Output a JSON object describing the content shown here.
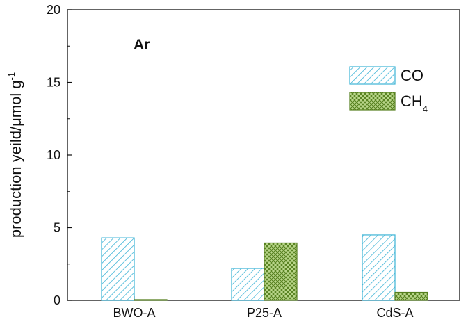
{
  "chart_data": {
    "type": "bar",
    "categories": [
      "BWO-A",
      "P25-A",
      "CdS-A"
    ],
    "series": [
      {
        "name": "CO",
        "values": [
          4.3,
          2.2,
          4.5
        ],
        "color": "#3cb3d6",
        "pattern": "diagonal-hatch"
      },
      {
        "name": "CH",
        "name_subscript": "4",
        "values": [
          0.05,
          3.95,
          0.55
        ],
        "color": "#6a9a2a",
        "pattern": "crosshatch"
      }
    ],
    "ylabel_main": "production yeild/",
    "ylabel_mu": "μ",
    "ylabel_unit": "mol g",
    "ylabel_sup": "-1",
    "ylim": [
      0,
      20
    ],
    "yticks": [
      "0",
      "5",
      "10",
      "15",
      "20"
    ],
    "annotation": "Ar",
    "legend_position": "top-right",
    "grid": false
  }
}
